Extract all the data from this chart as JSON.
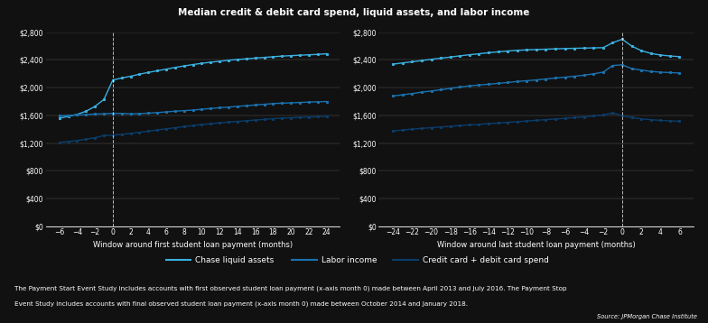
{
  "title": "Median credit & debit card spend, liquid assets, and labor income",
  "background_color": "#111111",
  "line_colors": {
    "liquid_assets": "#3ab0e0",
    "labor_income": "#1a72b0",
    "card_spend": "#0a3d6b"
  },
  "left": {
    "xlabel": "Window around first student loan payment (months)",
    "x": [
      -6,
      -5,
      -4,
      -3,
      -2,
      -1,
      0,
      1,
      2,
      3,
      4,
      5,
      6,
      7,
      8,
      9,
      10,
      11,
      12,
      13,
      14,
      15,
      16,
      17,
      18,
      19,
      20,
      21,
      22,
      23,
      24
    ],
    "liquid_assets": [
      1560,
      1585,
      1615,
      1660,
      1730,
      1830,
      2110,
      2140,
      2165,
      2195,
      2220,
      2245,
      2268,
      2292,
      2314,
      2334,
      2352,
      2368,
      2382,
      2396,
      2407,
      2417,
      2427,
      2437,
      2447,
      2456,
      2463,
      2469,
      2475,
      2481,
      2490
    ],
    "labor_income": [
      1595,
      1600,
      1605,
      1612,
      1618,
      1622,
      1630,
      1628,
      1622,
      1625,
      1632,
      1640,
      1650,
      1660,
      1668,
      1676,
      1688,
      1700,
      1710,
      1720,
      1730,
      1740,
      1750,
      1760,
      1770,
      1776,
      1781,
      1786,
      1791,
      1796,
      1800
    ],
    "card_spend": [
      1210,
      1222,
      1237,
      1255,
      1278,
      1308,
      1315,
      1325,
      1340,
      1355,
      1372,
      1388,
      1405,
      1422,
      1438,
      1453,
      1467,
      1480,
      1492,
      1503,
      1512,
      1522,
      1532,
      1542,
      1552,
      1560,
      1565,
      1570,
      1575,
      1580,
      1585
    ]
  },
  "right": {
    "xlabel": "Window around last student loan payment (months)",
    "x": [
      -24,
      -23,
      -22,
      -21,
      -20,
      -19,
      -18,
      -17,
      -16,
      -15,
      -14,
      -13,
      -12,
      -11,
      -10,
      -9,
      -8,
      -7,
      -6,
      -5,
      -4,
      -3,
      -2,
      -1,
      0,
      1,
      2,
      3,
      4,
      5,
      6
    ],
    "liquid_assets": [
      2340,
      2358,
      2374,
      2392,
      2410,
      2426,
      2442,
      2460,
      2476,
      2490,
      2505,
      2518,
      2530,
      2540,
      2546,
      2551,
      2556,
      2561,
      2565,
      2569,
      2572,
      2575,
      2578,
      2650,
      2700,
      2600,
      2535,
      2495,
      2472,
      2458,
      2448
    ],
    "labor_income": [
      1880,
      1897,
      1915,
      1935,
      1952,
      1970,
      1990,
      2010,
      2026,
      2038,
      2050,
      2062,
      2075,
      2090,
      2100,
      2112,
      2126,
      2140,
      2152,
      2165,
      2180,
      2200,
      2225,
      2320,
      2330,
      2275,
      2255,
      2235,
      2224,
      2218,
      2212
    ],
    "card_spend": [
      1375,
      1388,
      1401,
      1412,
      1422,
      1432,
      1442,
      1452,
      1462,
      1470,
      1480,
      1490,
      1500,
      1508,
      1518,
      1528,
      1538,
      1548,
      1558,
      1568,
      1578,
      1592,
      1605,
      1635,
      1595,
      1568,
      1550,
      1537,
      1527,
      1520,
      1514
    ]
  },
  "legend": [
    {
      "label": "Chase liquid assets",
      "color": "#3ab0e0"
    },
    {
      "label": "Labor income",
      "color": "#1a72b0"
    },
    {
      "label": "Credit card + debit card spend",
      "color": "#0a3d6b"
    }
  ],
  "footnote1": "The Payment Start Event Study includes accounts with first observed student loan payment (x-axis month 0) made between April 2013 and July 2016. The Payment Stop",
  "footnote2": "Event Study includes accounts with final observed student loan payment (x-axis month 0) made between October 2014 and January 2018.",
  "source": "Source: JPMorgan Chase Institute",
  "ylim": [
    0,
    2800
  ],
  "yticks": [
    0,
    400,
    800,
    1200,
    1600,
    2000,
    2400,
    2800
  ],
  "left_xticks": [
    -6,
    -4,
    -2,
    0,
    2,
    4,
    6,
    8,
    10,
    12,
    14,
    16,
    18,
    20,
    22,
    24
  ],
  "right_xticks": [
    -24,
    -22,
    -20,
    -18,
    -16,
    -14,
    -12,
    -10,
    -8,
    -6,
    -4,
    -2,
    0,
    2,
    4,
    6
  ]
}
